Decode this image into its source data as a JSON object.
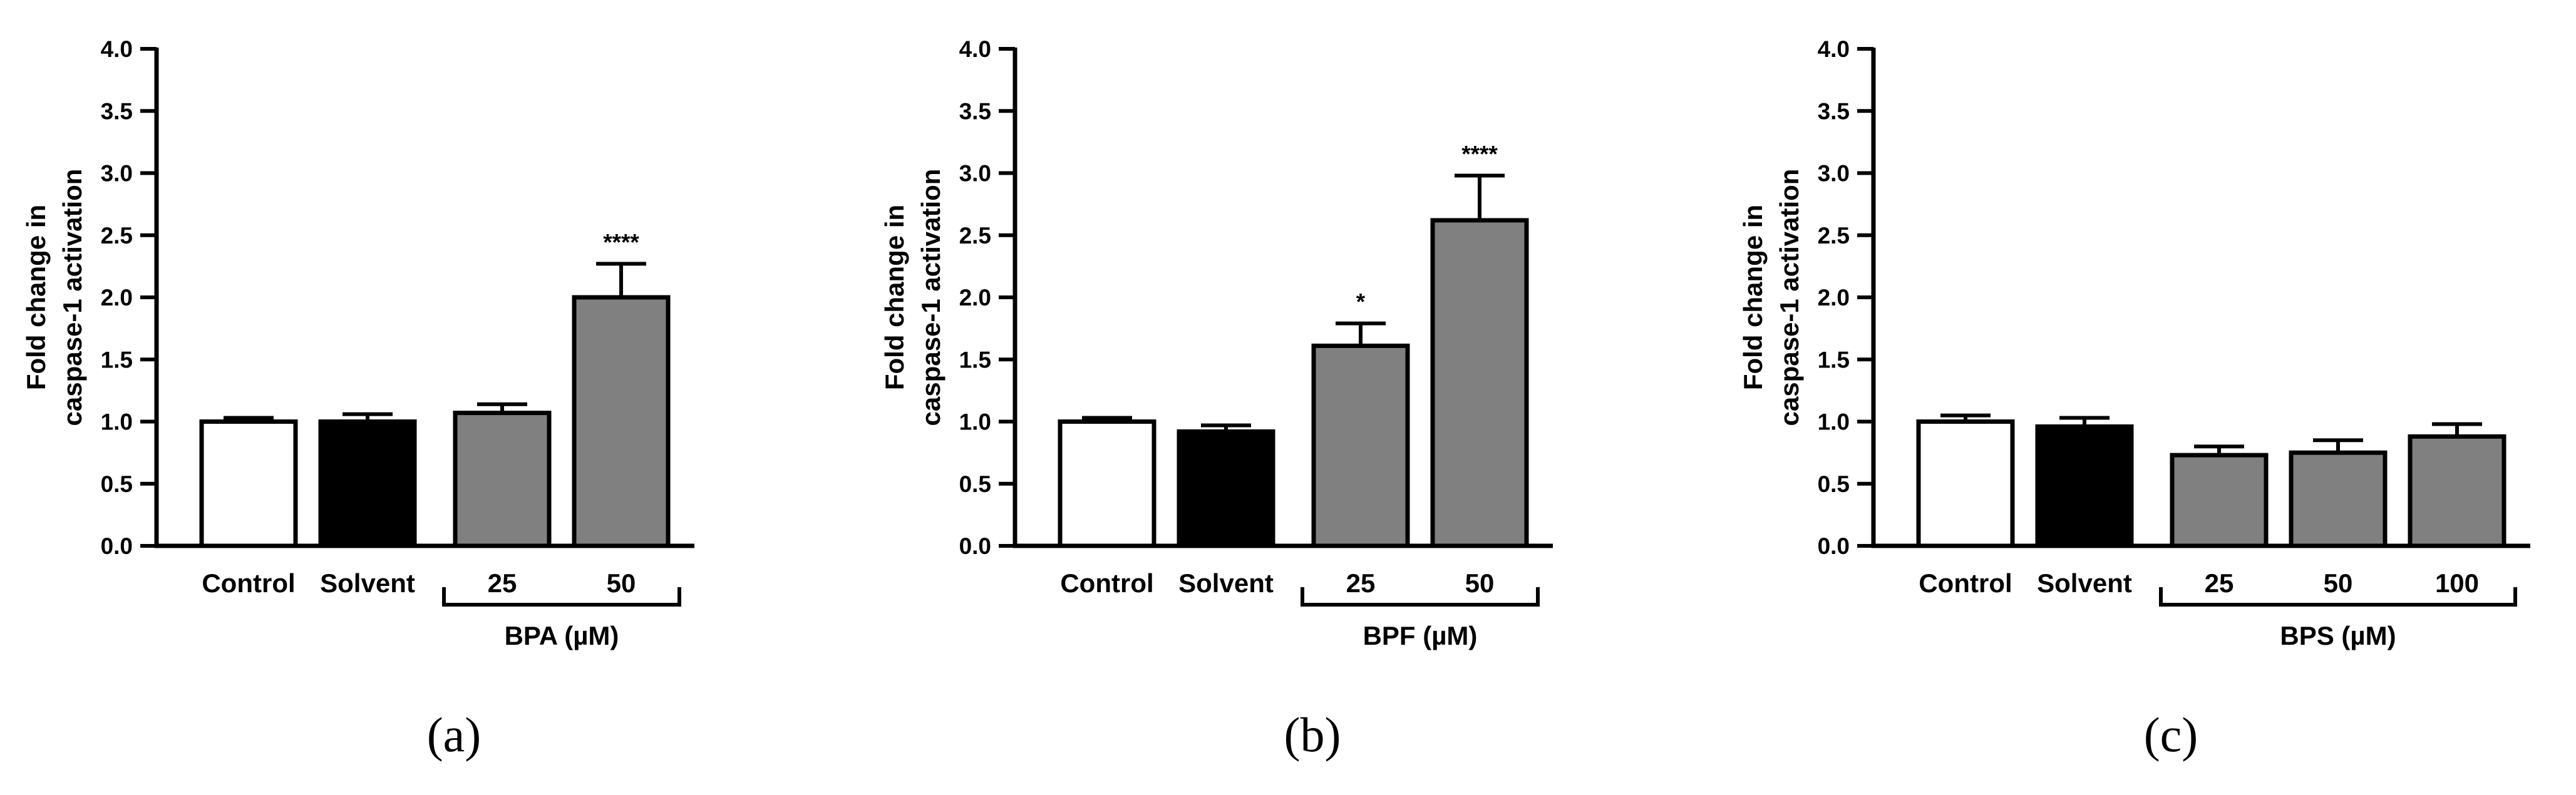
{
  "colors": {
    "white": "#ffffff",
    "black": "#000000",
    "gray": "#808080"
  },
  "chart_data": [
    {
      "type": "bar",
      "panel_label": "(a)",
      "ylabel_lines": [
        "Fold change in",
        "caspase-1 activation"
      ],
      "ylim": [
        0,
        4.0
      ],
      "yticks": [
        "0.0",
        "0.5",
        "1.0",
        "1.5",
        "2.0",
        "2.5",
        "3.0",
        "3.5",
        "4.0"
      ],
      "categories": [
        "Control",
        "Solvent",
        "25",
        "50"
      ],
      "values": [
        1.0,
        1.0,
        1.07,
        2.0
      ],
      "errors": [
        0.03,
        0.06,
        0.07,
        0.27
      ],
      "fills": [
        "#ffffff",
        "#000000",
        "#808080",
        "#808080"
      ],
      "significance": [
        "",
        "",
        "",
        "****"
      ],
      "group": {
        "label": "BPA (µM)",
        "from": 2,
        "to": 3
      }
    },
    {
      "type": "bar",
      "panel_label": "(b)",
      "ylabel_lines": [
        "Fold change in",
        "caspase-1 activation"
      ],
      "ylim": [
        0,
        4.0
      ],
      "yticks": [
        "0.0",
        "0.5",
        "1.0",
        "1.5",
        "2.0",
        "2.5",
        "3.0",
        "3.5",
        "4.0"
      ],
      "categories": [
        "Control",
        "Solvent",
        "25",
        "50"
      ],
      "values": [
        1.0,
        0.92,
        1.61,
        2.62
      ],
      "errors": [
        0.03,
        0.05,
        0.18,
        0.36
      ],
      "fills": [
        "#ffffff",
        "#000000",
        "#808080",
        "#808080"
      ],
      "significance": [
        "",
        "",
        "*",
        "****"
      ],
      "group": {
        "label": "BPF (µM)",
        "from": 2,
        "to": 3
      }
    },
    {
      "type": "bar",
      "panel_label": "(c)",
      "ylabel_lines": [
        "Fold change in",
        "caspase-1 activation"
      ],
      "ylim": [
        0,
        4.0
      ],
      "yticks": [
        "0.0",
        "0.5",
        "1.0",
        "1.5",
        "2.0",
        "2.5",
        "3.0",
        "3.5",
        "4.0"
      ],
      "categories": [
        "Control",
        "Solvent",
        "25",
        "50",
        "100"
      ],
      "values": [
        1.0,
        0.96,
        0.73,
        0.75,
        0.88
      ],
      "errors": [
        0.05,
        0.07,
        0.07,
        0.1,
        0.1
      ],
      "fills": [
        "#ffffff",
        "#000000",
        "#808080",
        "#808080",
        "#808080"
      ],
      "significance": [
        "",
        "",
        "",
        "",
        ""
      ],
      "group": {
        "label": "BPS (µM)",
        "from": 2,
        "to": 4
      }
    }
  ]
}
